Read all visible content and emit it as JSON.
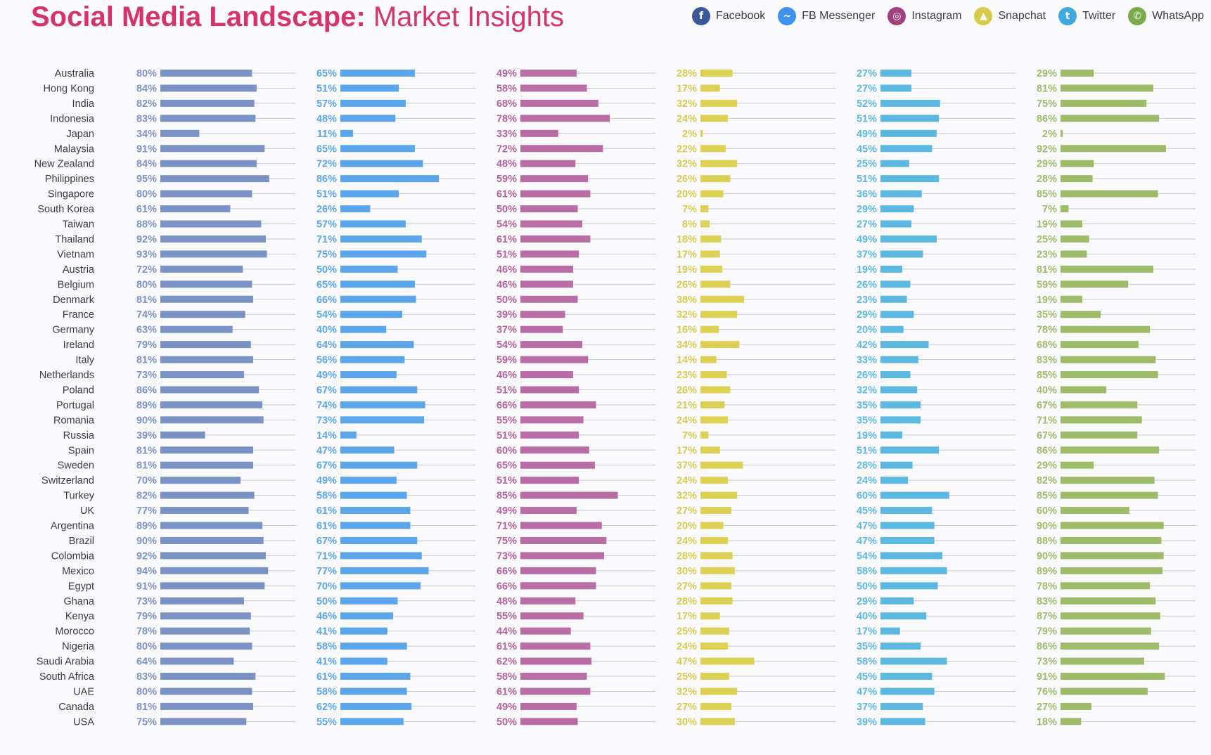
{
  "title": {
    "bold": "Social Media Landscape:",
    "light": "Market Insights"
  },
  "legend": [
    {
      "label": "Facebook",
      "icon": "facebook-icon",
      "glyph": "f",
      "color": "#3b5998"
    },
    {
      "label": "FB Messenger",
      "icon": "messenger-icon",
      "glyph": "~",
      "color": "#3f91ec"
    },
    {
      "label": "Instagram",
      "icon": "instagram-icon",
      "glyph": "◎",
      "color": "#a2407f"
    },
    {
      "label": "Snapchat",
      "icon": "snapchat-icon",
      "glyph": "▲",
      "color": "#d8cb4a"
    },
    {
      "label": "Twitter",
      "icon": "twitter-icon",
      "glyph": "t",
      "color": "#3fa9dd"
    },
    {
      "label": "WhatsApp",
      "icon": "whatsapp-icon",
      "glyph": "✆",
      "color": "#7ca94c"
    }
  ],
  "chart_data": {
    "type": "bar",
    "orientation": "horizontal",
    "grid": false,
    "unit": "%",
    "categories": [
      "Australia",
      "Hong Kong",
      "India",
      "Indonesia",
      "Japan",
      "Malaysia",
      "New Zealand",
      "Philippines",
      "Singapore",
      "South Korea",
      "Taiwan",
      "Thailand",
      "Vietnam",
      "Austria",
      "Belgium",
      "Denmark",
      "France",
      "Germany",
      "Ireland",
      "Italy",
      "Netherlands",
      "Poland",
      "Portugal",
      "Romania",
      "Russia",
      "Spain",
      "Sweden",
      "Switzerland",
      "Turkey",
      "UK",
      "Argentina",
      "Brazil",
      "Colombia",
      "Mexico",
      "Egypt",
      "Ghana",
      "Kenya",
      "Morocco",
      "Nigeria",
      "Saudi Arabia",
      "South Africa",
      "UAE",
      "Canada",
      "USA"
    ],
    "series": [
      {
        "name": "Facebook",
        "color": "#7b93c4",
        "label_color": "#7b93c4",
        "values": [
          80,
          84,
          82,
          83,
          34,
          91,
          84,
          95,
          80,
          61,
          88,
          92,
          93,
          72,
          80,
          81,
          74,
          63,
          79,
          81,
          73,
          86,
          89,
          90,
          39,
          81,
          81,
          70,
          82,
          77,
          89,
          90,
          92,
          94,
          91,
          73,
          79,
          78,
          80,
          64,
          83,
          80,
          81,
          75
        ]
      },
      {
        "name": "FB Messenger",
        "color": "#5ba6ea",
        "label_color": "#5ba6ea",
        "values": [
          65,
          51,
          57,
          48,
          11,
          65,
          72,
          86,
          51,
          26,
          57,
          71,
          75,
          50,
          65,
          66,
          54,
          40,
          64,
          56,
          49,
          67,
          74,
          73,
          14,
          47,
          67,
          49,
          58,
          61,
          61,
          67,
          71,
          77,
          70,
          50,
          46,
          41,
          58,
          41,
          61,
          58,
          62,
          55
        ]
      },
      {
        "name": "Instagram",
        "color": "#b96da5",
        "label_color": "#b5609c",
        "values": [
          49,
          58,
          68,
          78,
          33,
          72,
          48,
          59,
          61,
          50,
          54,
          61,
          51,
          46,
          46,
          50,
          39,
          37,
          54,
          59,
          46,
          51,
          66,
          55,
          51,
          60,
          65,
          51,
          85,
          49,
          71,
          75,
          73,
          66,
          66,
          48,
          55,
          44,
          61,
          62,
          58,
          61,
          49,
          50
        ]
      },
      {
        "name": "Snapchat",
        "color": "#dcd154",
        "label_color": "#d8ca4e",
        "values": [
          28,
          17,
          32,
          24,
          2,
          22,
          32,
          26,
          20,
          7,
          8,
          18,
          17,
          19,
          26,
          38,
          32,
          16,
          34,
          14,
          23,
          26,
          21,
          24,
          7,
          17,
          37,
          24,
          32,
          27,
          20,
          24,
          28,
          30,
          27,
          28,
          17,
          25,
          24,
          47,
          25,
          32,
          27,
          30
        ]
      },
      {
        "name": "Twitter",
        "color": "#5cb8e0",
        "label_color": "#5cb8e0",
        "values": [
          27,
          27,
          52,
          51,
          49,
          45,
          25,
          51,
          36,
          29,
          27,
          49,
          37,
          19,
          26,
          23,
          29,
          20,
          42,
          33,
          26,
          32,
          35,
          35,
          19,
          51,
          28,
          24,
          60,
          45,
          47,
          47,
          54,
          58,
          50,
          29,
          40,
          17,
          35,
          58,
          45,
          47,
          37,
          39
        ]
      },
      {
        "name": "WhatsApp",
        "color": "#9dbb68",
        "label_color": "#9dbb68",
        "values": [
          29,
          81,
          75,
          86,
          2,
          92,
          29,
          28,
          85,
          7,
          19,
          25,
          23,
          81,
          59,
          19,
          35,
          78,
          68,
          83,
          85,
          40,
          67,
          71,
          67,
          86,
          29,
          82,
          85,
          60,
          90,
          88,
          90,
          89,
          78,
          83,
          87,
          79,
          86,
          73,
          91,
          76,
          27,
          18
        ]
      }
    ]
  }
}
